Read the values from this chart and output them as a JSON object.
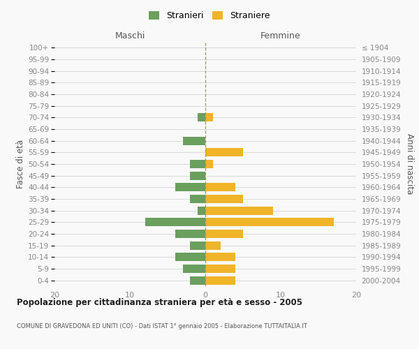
{
  "age_groups": [
    "100+",
    "95-99",
    "90-94",
    "85-89",
    "80-84",
    "75-79",
    "70-74",
    "65-69",
    "60-64",
    "55-59",
    "50-54",
    "45-49",
    "40-44",
    "35-39",
    "30-34",
    "25-29",
    "20-24",
    "15-19",
    "10-14",
    "5-9",
    "0-4"
  ],
  "birth_years": [
    "≤ 1904",
    "1905-1909",
    "1910-1914",
    "1915-1919",
    "1920-1924",
    "1925-1929",
    "1930-1934",
    "1935-1939",
    "1940-1944",
    "1945-1949",
    "1950-1954",
    "1955-1959",
    "1960-1964",
    "1965-1969",
    "1970-1974",
    "1975-1979",
    "1980-1984",
    "1985-1989",
    "1990-1994",
    "1995-1999",
    "2000-2004"
  ],
  "maschi": [
    0,
    0,
    0,
    0,
    0,
    0,
    1,
    0,
    3,
    0,
    2,
    2,
    4,
    2,
    1,
    8,
    4,
    2,
    4,
    3,
    2
  ],
  "femmine": [
    0,
    0,
    0,
    0,
    0,
    0,
    1,
    0,
    0,
    5,
    1,
    0,
    4,
    5,
    9,
    17,
    5,
    2,
    4,
    4,
    4
  ],
  "maschi_color": "#6a9f5e",
  "femmine_color": "#f0b429",
  "bg_color": "#f9f9f9",
  "grid_color": "#cccccc",
  "zero_line_color": "#999977",
  "title": "Popolazione per cittadinanza straniera per età e sesso - 2005",
  "subtitle": "COMUNE DI GRAVEDONA ED UNITI (CO) - Dati ISTAT 1° gennaio 2005 - Elaborazione TUTTAITALIA.IT",
  "col_header_maschi": "Maschi",
  "col_header_femmine": "Femmine",
  "ylabel_left": "Fasce di età",
  "ylabel_right": "Anni di nascita",
  "legend_stranieri": "Stranieri",
  "legend_straniere": "Straniere",
  "xlim": 20,
  "xtick_vals": [
    -20,
    -10,
    0,
    10,
    20
  ]
}
